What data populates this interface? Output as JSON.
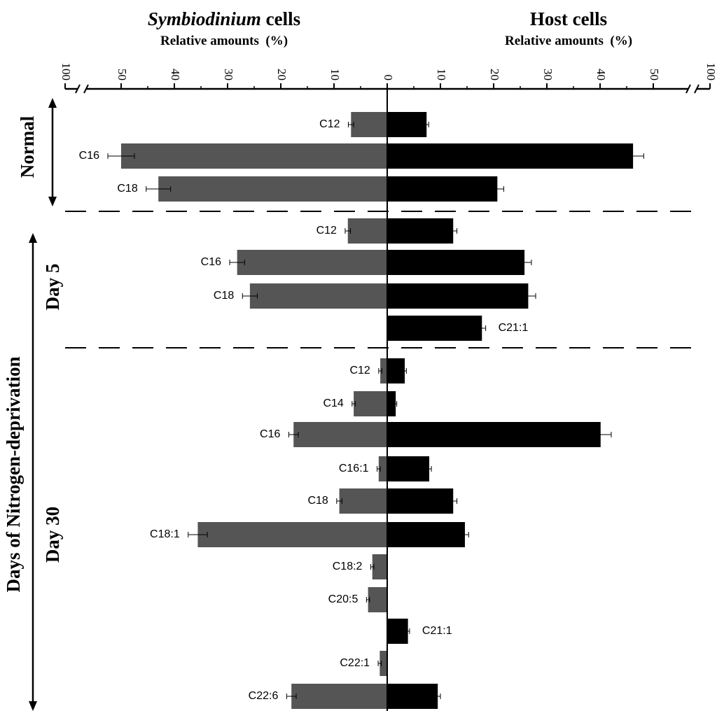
{
  "chart_data": {
    "type": "bar",
    "orientation": "horizontal-diverging",
    "left_panel": {
      "title_italic": "Symbiodinium",
      "title_rest": " cells",
      "subtitle": "Relative amounts  (%)"
    },
    "right_panel": {
      "title": "Host cells",
      "subtitle": "Relative amounts  (%)"
    },
    "axis_ticks": [
      {
        "label": "100",
        "value": 100,
        "side": "left"
      },
      {
        "label": "50",
        "value": 50,
        "side": "left"
      },
      {
        "label": "40",
        "value": 40,
        "side": "left"
      },
      {
        "label": "30",
        "value": 30,
        "side": "left"
      },
      {
        "label": "20",
        "value": 20,
        "side": "left"
      },
      {
        "label": "10",
        "value": 10,
        "side": "left"
      },
      {
        "label": "0",
        "value": 0,
        "side": "center"
      },
      {
        "label": "10",
        "value": 10,
        "side": "right"
      },
      {
        "label": "20",
        "value": 20,
        "side": "right"
      },
      {
        "label": "30",
        "value": 30,
        "side": "right"
      },
      {
        "label": "40",
        "value": 40,
        "side": "right"
      },
      {
        "label": "50",
        "value": 50,
        "side": "right"
      },
      {
        "label": "100",
        "value": 100,
        "side": "right"
      }
    ],
    "axis_break": "between 50 and 100",
    "series": [
      {
        "name": "Symbiodinium cells",
        "color": "#555555"
      },
      {
        "name": "Host cells",
        "color": "#000000"
      }
    ],
    "groups": [
      {
        "label": "Normal",
        "rows": [
          {
            "label": "C12",
            "label_side": "left",
            "symbiodinium": 6.8,
            "symbiodinium_err": 0.5,
            "host": 7.4,
            "host_err": 0.4
          },
          {
            "label": "C16",
            "label_side": "left",
            "symbiodinium": 50.0,
            "symbiodinium_err": 2.5,
            "host": 46.2,
            "host_err": 2.0
          },
          {
            "label": "C18",
            "label_side": "left",
            "symbiodinium": 43.0,
            "symbiodinium_err": 2.3,
            "host": 20.7,
            "host_err": 1.2
          }
        ]
      },
      {
        "label": "Day 5",
        "rows": [
          {
            "label": "C12",
            "label_side": "left",
            "symbiodinium": 7.4,
            "symbiodinium_err": 0.5,
            "host": 12.4,
            "host_err": 0.7
          },
          {
            "label": "C16",
            "label_side": "left",
            "symbiodinium": 28.2,
            "symbiodinium_err": 1.4,
            "host": 25.8,
            "host_err": 1.3
          },
          {
            "label": "C18",
            "label_side": "left",
            "symbiodinium": 25.8,
            "symbiodinium_err": 1.4,
            "host": 26.5,
            "host_err": 1.4
          },
          {
            "label": "C21:1",
            "label_side": "right",
            "symbiodinium": 0,
            "symbiodinium_err": 0,
            "host": 17.8,
            "host_err": 0.7
          }
        ]
      },
      {
        "label": "Day 30",
        "rows": [
          {
            "label": "C12",
            "label_side": "left",
            "symbiodinium": 1.3,
            "symbiodinium_err": 0.3,
            "host": 3.3,
            "host_err": 0.3
          },
          {
            "label": "C14",
            "label_side": "left",
            "symbiodinium": 6.3,
            "symbiodinium_err": 0.3,
            "host": 1.6,
            "host_err": 0.2
          },
          {
            "label": "C16",
            "label_side": "left",
            "symbiodinium": 17.6,
            "symbiodinium_err": 0.9,
            "host": 40.1,
            "host_err": 2.0
          },
          {
            "label": "C16:1",
            "label_side": "left",
            "symbiodinium": 1.6,
            "symbiodinium_err": 0.3,
            "host": 7.9,
            "host_err": 0.4
          },
          {
            "label": "C18",
            "label_side": "left",
            "symbiodinium": 9.0,
            "symbiodinium_err": 0.5,
            "host": 12.4,
            "host_err": 0.7
          },
          {
            "label": "C18:1",
            "label_side": "left",
            "symbiodinium": 35.6,
            "symbiodinium_err": 1.8,
            "host": 14.6,
            "host_err": 0.7
          },
          {
            "label": "C18:2",
            "label_side": "left",
            "symbiodinium": 2.8,
            "symbiodinium_err": 0.3,
            "host": 0,
            "host_err": 0
          },
          {
            "label": "C20:5",
            "label_side": "left",
            "symbiodinium": 3.6,
            "symbiodinium_err": 0.3,
            "host": 0,
            "host_err": 0
          },
          {
            "label": "C21:1",
            "label_side": "right",
            "symbiodinium": 0,
            "symbiodinium_err": 0,
            "host": 3.9,
            "host_err": 0.3
          },
          {
            "label": "C22:1",
            "label_side": "left",
            "symbiodinium": 1.4,
            "symbiodinium_err": 0.3,
            "host": 0,
            "host_err": 0
          },
          {
            "label": "C22:6",
            "label_side": "left",
            "symbiodinium": 18.0,
            "symbiodinium_err": 0.9,
            "host": 9.5,
            "host_err": 0.5
          }
        ]
      }
    ],
    "outer_label": "Days of Nitrogen-deprivation"
  }
}
